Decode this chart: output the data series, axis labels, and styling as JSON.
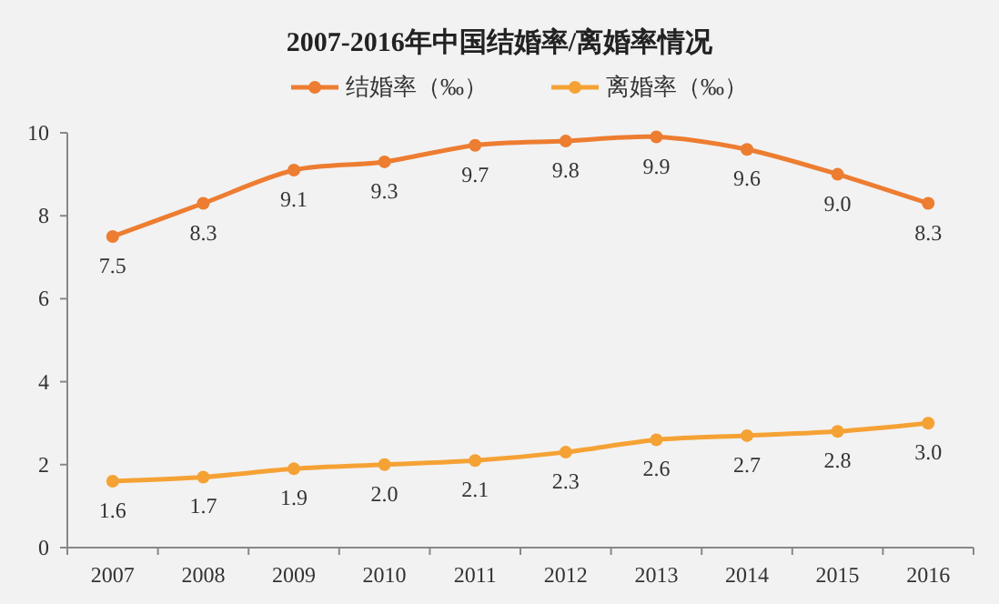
{
  "chart_data": {
    "type": "line",
    "title": "2007-2016年中国结婚率/离婚率情况",
    "categories": [
      "2007",
      "2008",
      "2009",
      "2010",
      "2011",
      "2012",
      "2013",
      "2014",
      "2015",
      "2016"
    ],
    "series": [
      {
        "name": "结婚率（‰）",
        "color": "#ed7d31",
        "values": [
          7.5,
          8.3,
          9.1,
          9.3,
          9.7,
          9.8,
          9.9,
          9.6,
          9.0,
          8.3
        ],
        "value_labels": [
          "7.5",
          "8.3",
          "9.1",
          "9.3",
          "9.7",
          "9.8",
          "9.9",
          "9.6",
          "9.0",
          "8.3"
        ]
      },
      {
        "name": "离婚率（‰）",
        "color": "#f5a235",
        "values": [
          1.6,
          1.7,
          1.9,
          2.0,
          2.1,
          2.3,
          2.6,
          2.7,
          2.8,
          3.0
        ],
        "value_labels": [
          "1.6",
          "1.7",
          "1.9",
          "2.0",
          "2.1",
          "2.3",
          "2.6",
          "2.7",
          "2.8",
          "3.0"
        ]
      }
    ],
    "ylim": [
      0,
      10
    ],
    "yticks": [
      0,
      2,
      4,
      6,
      8,
      10
    ],
    "legend": "top",
    "marker": "circle",
    "line_style": "solid"
  }
}
